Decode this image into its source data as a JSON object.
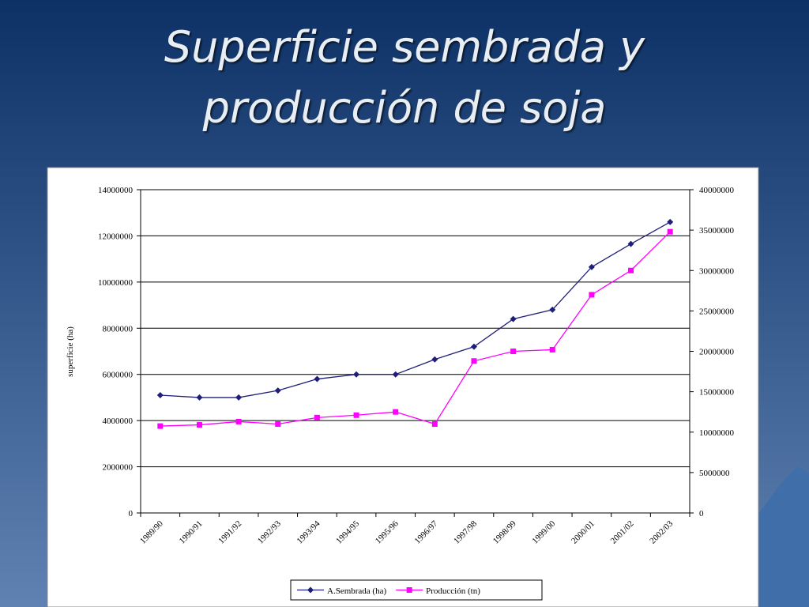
{
  "slide": {
    "title": [
      "Superficie sembrada y",
      "producción de soja"
    ]
  },
  "chart_data": {
    "type": "line",
    "y_label": "superficie (ha)",
    "categories": [
      "1989/90",
      "1990/91",
      "1991/92",
      "1992/93",
      "1993/94",
      "1994/95",
      "1995/96",
      "1996/97",
      "1997/98",
      "1998/99",
      "1999/00",
      "2000/01",
      "2001/02",
      "2002/03"
    ],
    "series": [
      {
        "name": "A.Sembrada (ha)",
        "color": "#1f1f7a",
        "marker": "diamond",
        "axis": "y",
        "values": [
          5100000,
          5000000,
          5000000,
          5300000,
          5800000,
          6000000,
          6000000,
          6650000,
          7200000,
          8400000,
          8800000,
          10650000,
          11650000,
          12600000
        ]
      },
      {
        "name": "Producción (tn)",
        "color": "#ff00ff",
        "marker": "square",
        "axis": "y2",
        "values": [
          10750000,
          10900000,
          11300000,
          11000000,
          11800000,
          12100000,
          12500000,
          11000000,
          18800000,
          20000000,
          20200000,
          27000000,
          30000000,
          34800000
        ]
      }
    ],
    "ylim": [
      0,
      14000000
    ],
    "yticks": [
      0,
      2000000,
      4000000,
      6000000,
      8000000,
      10000000,
      12000000,
      14000000
    ],
    "y2lim": [
      0,
      40000000
    ],
    "y2ticks": [
      0,
      5000000,
      10000000,
      15000000,
      20000000,
      25000000,
      30000000,
      35000000,
      40000000
    ],
    "grid": true,
    "legend": "bottom"
  }
}
